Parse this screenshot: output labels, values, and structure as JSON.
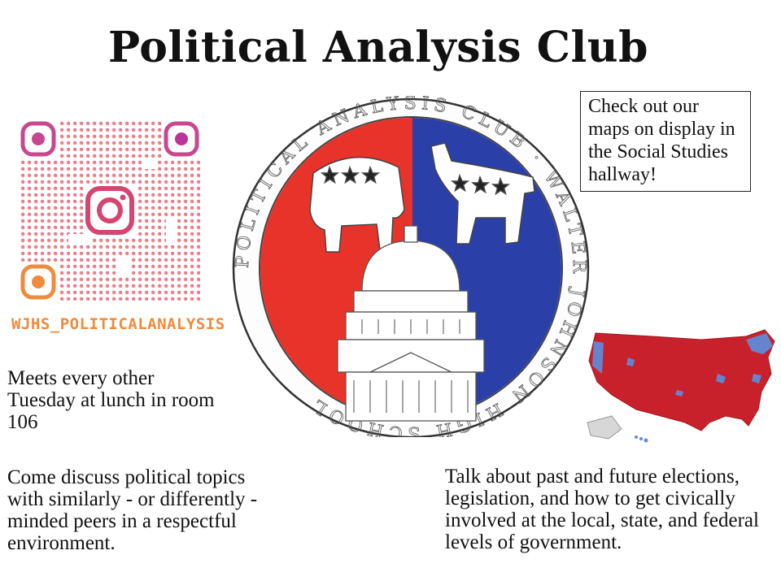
{
  "title": "Political Analysis Club",
  "instagram_handle": "WJHS_POLITICALANALYSIS",
  "callout": "Check out our maps on display in the Social Studies hallway!",
  "meets": "Meets every other Tuesday at lunch in room 106",
  "discuss": "Come discuss political topics with similarly - or differently - minded peers in a respectful environment.",
  "talk": "Talk about past and future elections, legislation, and how to get civically involved at the local, state, and federal levels of government.",
  "seal_text": "POLITICAL ANALYSIS CLUB · WALTER JOHNSON HIGH SCHOOL",
  "colors": {
    "republican_red": "#e8332a",
    "democrat_blue": "#2a3fa8",
    "qr_orange": "#f08a3c",
    "qr_magenta": "#c0338f",
    "handle": "#f08a3c"
  },
  "icons": [
    "qr-code-icon",
    "instagram-icon",
    "elephant-icon",
    "donkey-icon",
    "capitol-icon",
    "us-map-icon"
  ]
}
